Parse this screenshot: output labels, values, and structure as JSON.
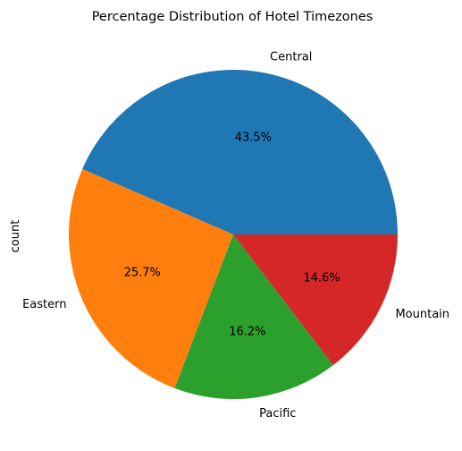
{
  "chart_data": {
    "type": "pie",
    "title": "Percentage Distribution of Hotel Timezones",
    "ylabel": "count",
    "slices": [
      {
        "label": "Central",
        "percent": 43.5,
        "percent_label": "43.5%",
        "color": "#1f77b4"
      },
      {
        "label": "Eastern",
        "percent": 25.7,
        "percent_label": "25.7%",
        "color": "#ff7f0e"
      },
      {
        "label": "Pacific",
        "percent": 16.2,
        "percent_label": "16.2%",
        "color": "#2ca02c"
      },
      {
        "label": "Mountain",
        "percent": 14.6,
        "percent_label": "14.6%",
        "color": "#d62728"
      }
    ],
    "start_angle": 0,
    "direction": "counterclockwise"
  }
}
